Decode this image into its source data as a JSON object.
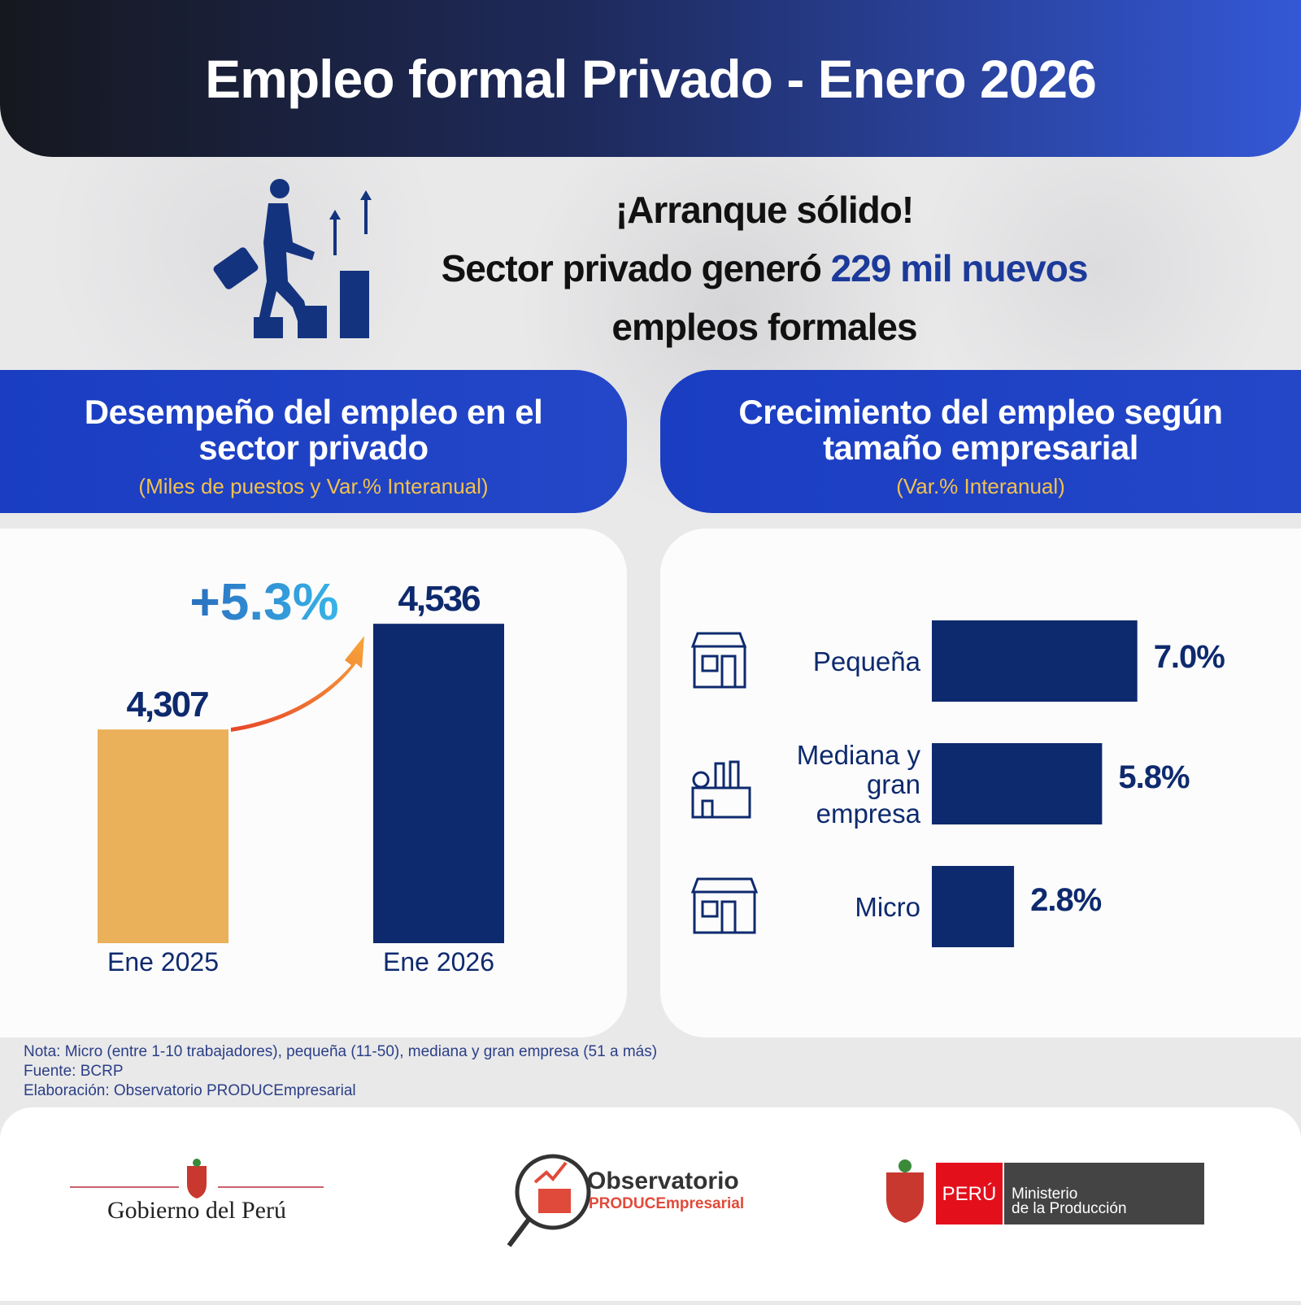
{
  "header": {
    "title": "Empleo formal Privado  - Enero 2026"
  },
  "headline": {
    "line1": "¡Arranque sólido!",
    "line2_pre": "Sector privado generó ",
    "line2_bold": "229 mil",
    "line2_post": " nuevos",
    "line3": "empleos formales"
  },
  "left_panel": {
    "title_line1": "Desempeño del empleo en el",
    "title_line2": "sector privado",
    "subtitle": "(Miles de puestos y Var.% Interanual)"
  },
  "right_panel": {
    "title_line1": "Crecimiento del empleo según",
    "title_line2": "tamaño empresarial",
    "subtitle": "(Var.% Interanual)"
  },
  "colors": {
    "navy": "#0e2a6e",
    "gold": "#eab05a",
    "blue": "#1b3fc4",
    "growth": "#2a8fd0"
  },
  "chart_data": [
    {
      "type": "bar",
      "title": "Desempeño del empleo en el sector privado",
      "categories": [
        "Ene 2025",
        "Ene 2026"
      ],
      "values": [
        4307,
        4536
      ],
      "value_labels": [
        "4,307",
        "4,536"
      ],
      "annotation": "+5.3%",
      "ylabel": "Miles de puestos",
      "colors": [
        "#eab05a",
        "#0e2a6e"
      ]
    },
    {
      "type": "bar",
      "orientation": "horizontal",
      "title": "Crecimiento del empleo según tamaño empresarial",
      "categories": [
        "Pequeña",
        "Mediana y gran empresa",
        "Micro"
      ],
      "category_lines": [
        [
          "Pequeña"
        ],
        [
          "Mediana y",
          "gran",
          "empresa"
        ],
        [
          "Micro"
        ]
      ],
      "values": [
        7.0,
        5.8,
        2.8
      ],
      "value_labels": [
        "7.0%",
        "5.8%",
        "2.8%"
      ],
      "icons": [
        "shop-icon",
        "factory-icon",
        "market-stall-icon"
      ],
      "unit": "%"
    }
  ],
  "notes": {
    "nota": "Nota: Micro (entre 1-10 trabajadores), pequeña (11-50), mediana y gran empresa (51 a más)",
    "fuente": "Fuente: BCRP",
    "elaboracion": "Elaboración: Observatorio PRODUCEmpresarial"
  },
  "footer": {
    "gob": "Gobierno del Perú",
    "obs_line1": "Observatorio",
    "obs_line2": "PRODUCEmpresarial",
    "peru": "PERÚ",
    "min_line1": "Ministerio",
    "min_line2": "de la Producción"
  }
}
